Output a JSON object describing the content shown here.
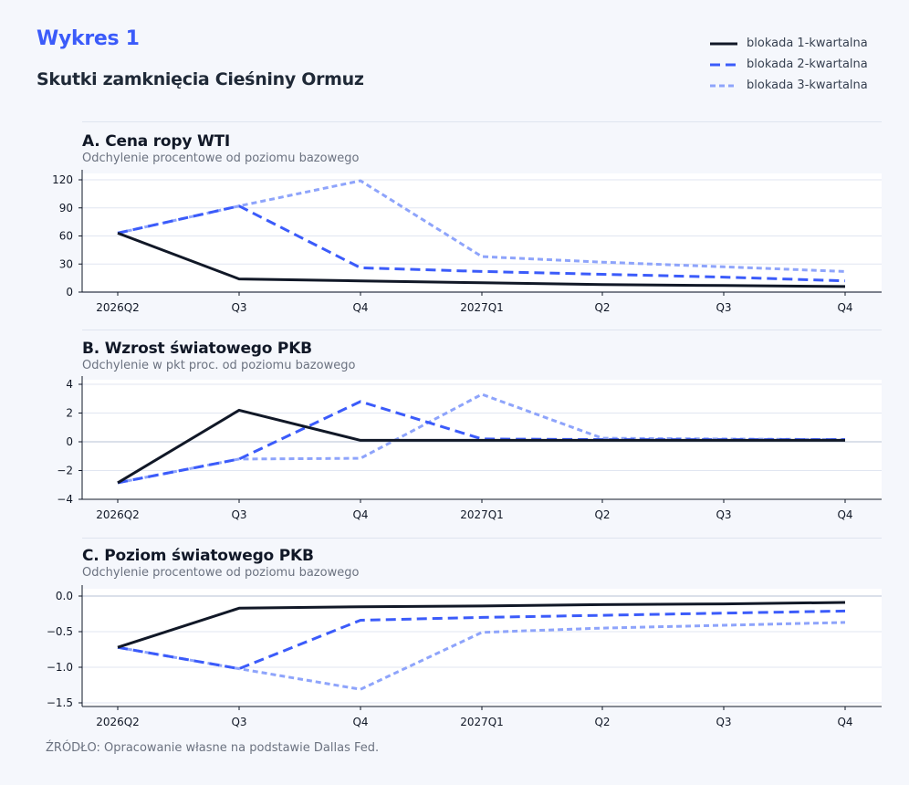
{
  "header": {
    "figure_label": "Wykres 1",
    "title": "Skutki zamknięcia Cieśniny Ormuz"
  },
  "legend": [
    {
      "label": "blokada 1-kwartalna",
      "color": "#111827",
      "style": "solid"
    },
    {
      "label": "blokada 2-kwartalna",
      "color": "#3b5bfa",
      "style": "dashed"
    },
    {
      "label": "blokada 3-kwartalna",
      "color": "#8ea4fb",
      "style": "dotted"
    }
  ],
  "source": "ŹRÓDŁO: Opracowanie własne na podstawie Dallas Fed.",
  "chart_data": [
    {
      "type": "line",
      "title": "A. Cena ropy WTI",
      "subtitle": "Odchylenie procentowe od poziomu bazowego",
      "categories": [
        "2026Q2",
        "Q3",
        "Q4",
        "2027Q1",
        "Q2",
        "Q3",
        "Q4"
      ],
      "ylim": [
        0,
        120
      ],
      "yticks": [
        0,
        30,
        60,
        90,
        120
      ],
      "ytick_labels": [
        "0",
        "30",
        "60",
        "90",
        "120"
      ],
      "grid": true,
      "series": [
        {
          "name": "blokada 1-kwartalna",
          "values": [
            63,
            14,
            12,
            10,
            8,
            7,
            6
          ]
        },
        {
          "name": "blokada 2-kwartalna",
          "values": [
            63,
            92,
            26,
            22,
            19,
            16,
            12
          ]
        },
        {
          "name": "blokada 3-kwartalna",
          "values": [
            63,
            92,
            119,
            38,
            32,
            27,
            22
          ]
        }
      ]
    },
    {
      "type": "line",
      "title": "B. Wzrost światowego PKB",
      "subtitle": "Odchylenie w pkt proc. od poziomu bazowego",
      "categories": [
        "2026Q2",
        "Q3",
        "Q4",
        "2027Q1",
        "Q2",
        "Q3",
        "Q4"
      ],
      "ylim": [
        -4,
        4
      ],
      "yticks": [
        -4,
        -2,
        0,
        2,
        4
      ],
      "ytick_labels": [
        "−4",
        "−2",
        "0",
        "2",
        "4"
      ],
      "grid": true,
      "series": [
        {
          "name": "blokada 1-kwartalna",
          "values": [
            -2.85,
            2.2,
            0.1,
            0.1,
            0.1,
            0.1,
            0.1
          ]
        },
        {
          "name": "blokada 2-kwartalna",
          "values": [
            -2.85,
            -1.2,
            2.8,
            0.2,
            0.15,
            0.15,
            0.15
          ]
        },
        {
          "name": "blokada 3-kwartalna",
          "values": [
            -2.85,
            -1.2,
            -1.15,
            3.3,
            0.25,
            0.2,
            0.15
          ]
        }
      ]
    },
    {
      "type": "line",
      "title": "C. Poziom światowego PKB",
      "subtitle": "Odchylenie procentowe od poziomu bazowego",
      "categories": [
        "2026Q2",
        "Q3",
        "Q4",
        "2027Q1",
        "Q2",
        "Q3",
        "Q4"
      ],
      "ylim": [
        -1.55,
        0.05
      ],
      "yticks": [
        -1.5,
        -1.0,
        -0.5,
        0.0
      ],
      "ytick_labels": [
        "−1.5",
        "−1.0",
        "−0.5",
        "0.0"
      ],
      "grid": true,
      "series": [
        {
          "name": "blokada 1-kwartalna",
          "values": [
            -0.72,
            -0.17,
            -0.15,
            -0.14,
            -0.12,
            -0.11,
            -0.09
          ]
        },
        {
          "name": "blokada 2-kwartalna",
          "values": [
            -0.72,
            -1.02,
            -0.34,
            -0.3,
            -0.27,
            -0.24,
            -0.21
          ]
        },
        {
          "name": "blokada 3-kwartalna",
          "values": [
            -0.72,
            -1.02,
            -1.31,
            -0.51,
            -0.45,
            -0.41,
            -0.37
          ]
        }
      ]
    }
  ]
}
